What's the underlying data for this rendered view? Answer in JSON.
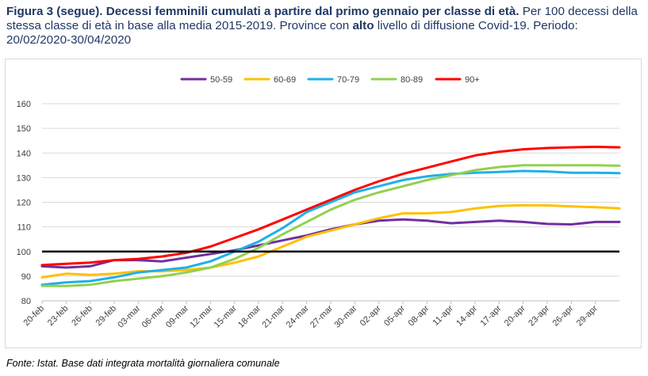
{
  "caption": {
    "bold_part": "Figura 3 (segue). Decessi femminili cumulati a partire dal primo gennaio per classe di età.",
    "normal_part_1": " Per 100 decessi della stessa classe di età in base alla media 2015-2019. Province con ",
    "bold_word": "alto",
    "normal_part_2": " livello di diffusione Covid-19. Periodo: 20/02/2020-30/04/2020"
  },
  "source_note": "Fonte: Istat. Base dati integrata mortalità giornaliera comunale",
  "chart_data": {
    "type": "line",
    "title": "",
    "xlabel": "",
    "ylabel": "",
    "ylim": [
      80,
      160
    ],
    "yticks": [
      80,
      90,
      100,
      110,
      120,
      130,
      140,
      150,
      160
    ],
    "grid": "horizontal",
    "legend_position": "top",
    "reference_line": {
      "y": 100,
      "color": "#000000"
    },
    "x_tick_labels": [
      "20-feb",
      "23-feb",
      "26-feb",
      "29-feb",
      "03-mar",
      "06-mar",
      "09-mar",
      "12-mar",
      "15-mar",
      "18-mar",
      "21-mar",
      "24-mar",
      "27-mar",
      "30-mar",
      "02-apr",
      "05-apr",
      "08-apr",
      "11-apr",
      "14-apr",
      "17-apr",
      "20-apr",
      "23-apr",
      "26-apr",
      "29-apr"
    ],
    "x": [
      "20-feb",
      "23-feb",
      "26-feb",
      "29-feb",
      "03-mar",
      "06-mar",
      "09-mar",
      "12-mar",
      "15-mar",
      "18-mar",
      "21-mar",
      "24-mar",
      "27-mar",
      "30-mar",
      "02-apr",
      "05-apr",
      "08-apr",
      "11-apr",
      "14-apr",
      "17-apr",
      "20-apr",
      "23-apr",
      "26-apr",
      "29-apr",
      "30-apr"
    ],
    "series": [
      {
        "name": "50-59",
        "color": "#7030a0",
        "values": [
          94,
          93.5,
          94,
          96.5,
          96.5,
          96,
          97.5,
          99,
          100.5,
          102.5,
          104.5,
          106.5,
          109,
          111,
          112.5,
          113,
          112.5,
          111.5,
          112,
          112.5,
          112,
          111.2,
          111,
          112,
          112
        ]
      },
      {
        "name": "60-69",
        "color": "#ffc000",
        "values": [
          89.5,
          91,
          90.5,
          91,
          92,
          92,
          92.5,
          93.5,
          95.5,
          98,
          102,
          106,
          108.5,
          111,
          113.5,
          115.5,
          115.5,
          116,
          117.5,
          118.5,
          118.8,
          118.7,
          118.3,
          118,
          117.5
        ]
      },
      {
        "name": "70-79",
        "color": "#1fb0e8",
        "values": [
          86.5,
          87.5,
          88,
          89.5,
          91.5,
          92.5,
          93.5,
          96,
          100,
          104,
          109.5,
          116,
          120,
          124,
          126.5,
          129,
          130.5,
          131.5,
          132,
          132.3,
          132.7,
          132.5,
          132,
          132,
          131.8
        ]
      },
      {
        "name": "80-89",
        "color": "#92d050",
        "values": [
          86,
          86,
          86.5,
          88,
          89,
          90,
          91.5,
          93.5,
          97,
          101.5,
          107,
          112,
          117,
          121,
          124,
          126.5,
          129,
          131,
          133,
          134.3,
          135,
          135,
          135,
          135,
          134.8
        ]
      },
      {
        "name": "90+",
        "color": "#ff0000",
        "values": [
          94.5,
          95,
          95.5,
          96.5,
          97,
          98,
          99.5,
          102,
          105.5,
          109,
          113,
          117,
          121,
          125,
          128.5,
          131.5,
          134,
          136.5,
          139,
          140.5,
          141.5,
          142,
          142.3,
          142.5,
          142.3
        ]
      }
    ]
  }
}
